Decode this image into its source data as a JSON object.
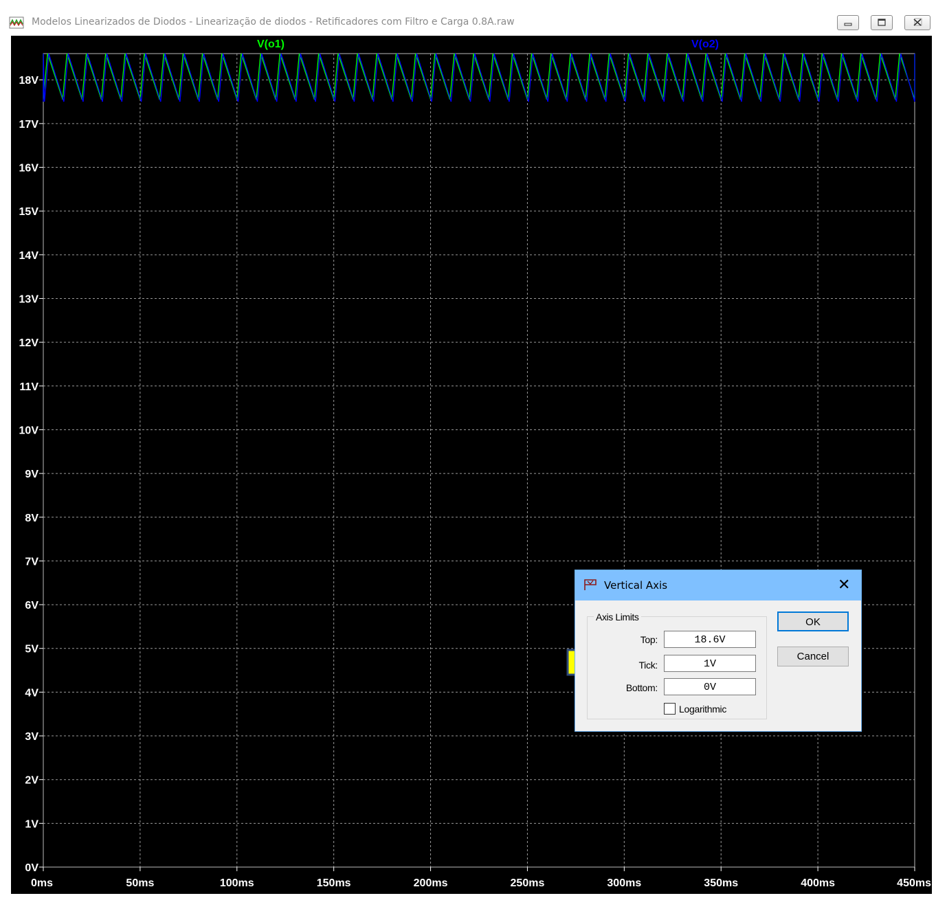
{
  "window": {
    "title": "Modelos Linearizados de Diodos - Linearização de diodos - Retificadores com Filtro e Carga 0.8A.raw",
    "controls": [
      "minimize-icon",
      "restore-icon",
      "close-icon"
    ]
  },
  "chart_data": {
    "type": "line",
    "x_ticks": [
      "0ms",
      "50ms",
      "100ms",
      "150ms",
      "200ms",
      "250ms",
      "300ms",
      "350ms",
      "400ms",
      "450ms"
    ],
    "y_ticks": [
      "0V",
      "1V",
      "2V",
      "3V",
      "4V",
      "5V",
      "6V",
      "7V",
      "8V",
      "9V",
      "10V",
      "11V",
      "12V",
      "13V",
      "14V",
      "15V",
      "16V",
      "17V",
      "18V"
    ],
    "xlim": [
      0,
      450
    ],
    "ylim": [
      0,
      18.6
    ],
    "grid": true,
    "ripple_period_ms": 10,
    "series": [
      {
        "name": "V(o1)",
        "color": "#00ff00",
        "v_max": 18.6,
        "v_min": 17.55
      },
      {
        "name": "V(o2)",
        "color": "#0000ff",
        "v_max": 18.6,
        "v_min": 17.5
      }
    ]
  },
  "dialog": {
    "title": "Vertical Axis",
    "group_label": "Axis Limits",
    "top_label": "Top:",
    "top_value": "18.6V",
    "tick_label": "Tick:",
    "tick_value": "1V",
    "bottom_label": "Bottom:",
    "bottom_value": "0V",
    "log_label": "Logarithmic",
    "log_checked": false,
    "ok_label": "OK",
    "cancel_label": "Cancel"
  },
  "colors": {
    "plot_bg": "#000000",
    "axis_text": "#ffffff",
    "grid": "#9a9a9a",
    "dialog_title_bar": "#7fc0ff",
    "arrow_fill": "#ffff00",
    "arrow_stroke": "#2f4a78"
  }
}
